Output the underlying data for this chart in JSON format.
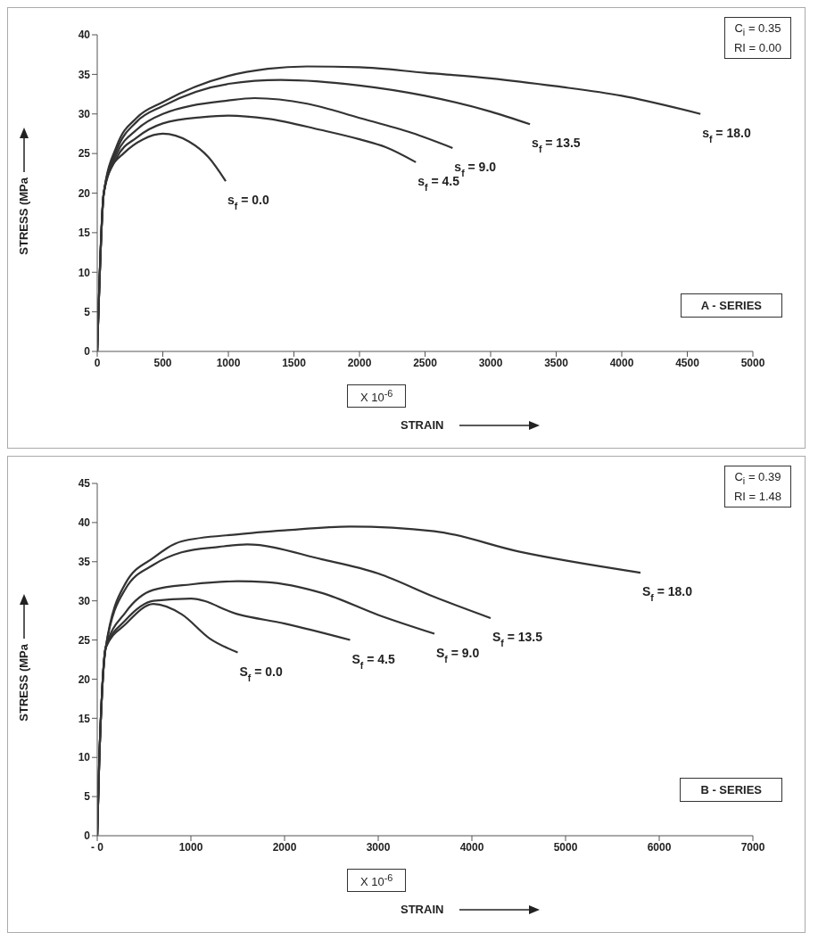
{
  "chart_data": [
    {
      "type": "line",
      "xlabel": "STRAIN",
      "ylabel": "STRESS (MPa",
      "xlim": [
        0,
        5000
      ],
      "xticks": [
        0,
        500,
        1000,
        1500,
        2000,
        2500,
        3000,
        3500,
        4000,
        4500,
        5000
      ],
      "ylim": [
        0,
        40
      ],
      "yticks": [
        0,
        5,
        10,
        15,
        20,
        25,
        30,
        35,
        40
      ],
      "marker": "none",
      "annotations": [
        "C$_{i}$ = 0.35",
        "RI = 0.00",
        "A - SERIES",
        "X 10$^{-6}$"
      ],
      "series": [
        {
          "name": "s$_{f}$ = 0.0",
          "color": "#333333",
          "x": [
            0,
            50,
            100,
            200,
            350,
            500,
            700,
            850,
            980
          ],
          "values": [
            0,
            20,
            23,
            25,
            26.8,
            27.5,
            26.5,
            24.5,
            21.5
          ]
        },
        {
          "name": "s$_{f}$ = 4.5",
          "color": "#333333",
          "x": [
            0,
            50,
            150,
            300,
            500,
            800,
            1000,
            1300,
            1700,
            2000,
            2200,
            2430
          ],
          "values": [
            0,
            20,
            24.5,
            27,
            28.8,
            29.6,
            29.8,
            29.4,
            28,
            26.8,
            25.8,
            23.9
          ]
        },
        {
          "name": "s$_{f}$ = 9.0",
          "color": "#333333",
          "x": [
            0,
            50,
            150,
            300,
            500,
            1000,
            1200,
            1600,
            2000,
            2400,
            2710
          ],
          "values": [
            0,
            20,
            25,
            28,
            30,
            31.7,
            32,
            31.3,
            29.5,
            27.6,
            25.7
          ]
        },
        {
          "name": "s$_{f}$ = 13.5",
          "color": "#333333",
          "x": [
            0,
            50,
            150,
            300,
            500,
            1000,
            1400,
            2000,
            2500,
            3000,
            3300
          ],
          "values": [
            0,
            20,
            25.5,
            29,
            31,
            33.8,
            34.3,
            33.6,
            32.3,
            30.3,
            28.7
          ]
        },
        {
          "name": "s$_{f}$ = 18.0",
          "color": "#333333",
          "x": [
            0,
            50,
            150,
            300,
            500,
            1000,
            1300,
            1600,
            2000,
            2500,
            3000,
            3500,
            4000,
            4600
          ],
          "values": [
            0,
            20,
            26,
            29.5,
            31.5,
            34.8,
            35.7,
            36,
            35.9,
            35.2,
            34.5,
            33.5,
            32.3,
            30
          ]
        }
      ]
    },
    {
      "type": "line",
      "xlabel": "STRAIN",
      "ylabel": "STRESS (MPa",
      "xlim": [
        0,
        7000
      ],
      "xticks": [
        {
          "value": 0,
          "label": "- 0"
        },
        1000,
        2000,
        3000,
        4000,
        5000,
        6000,
        7000
      ],
      "ylim": [
        0,
        45
      ],
      "yticks": [
        0,
        5,
        10,
        15,
        20,
        25,
        30,
        35,
        40,
        45
      ],
      "marker": "none",
      "annotations": [
        "C$_{i}$ = 0.39",
        "RI = 1.48",
        "B - SERIES",
        "X 10$^{-6}$"
      ],
      "series": [
        {
          "name": "S$_{f}$ = 0.0",
          "color": "#333333",
          "x": [
            0,
            20,
            50,
            90,
            300,
            600,
            900,
            1200,
            1500
          ],
          "values": [
            0,
            9,
            18,
            24,
            27,
            29.6,
            28.3,
            25.2,
            23.4
          ]
        },
        {
          "name": "S$_{f}$ = 4.5",
          "color": "#333333",
          "x": [
            0,
            20,
            50,
            90,
            300,
            600,
            1000,
            1500,
            2000,
            2700
          ],
          "values": [
            0,
            9,
            18,
            24,
            27.5,
            30,
            30.3,
            28.3,
            27.1,
            25
          ]
        },
        {
          "name": "S$_{f}$ = 9.0",
          "color": "#333333",
          "x": [
            0,
            20,
            50,
            90,
            300,
            600,
            1000,
            1500,
            1800,
            2400,
            3000,
            3600
          ],
          "values": [
            0,
            9,
            18,
            24,
            28.5,
            31.4,
            32.1,
            32.5,
            32.4,
            31,
            28.2,
            25.8
          ]
        },
        {
          "name": "S$_{f}$ = 13.5",
          "color": "#333333",
          "x": [
            0,
            20,
            50,
            90,
            300,
            600,
            900,
            1300,
            1600,
            2400,
            3000,
            3600,
            4200
          ],
          "values": [
            0,
            9,
            18,
            24,
            31.5,
            34.6,
            36.2,
            36.9,
            37.2,
            35.3,
            33.5,
            30.5,
            27.8
          ]
        },
        {
          "name": "S$_{f}$ = 18.0",
          "color": "#333333",
          "x": [
            0,
            20,
            50,
            90,
            300,
            600,
            900,
            1500,
            2000,
            2700,
            3600,
            4500,
            5800
          ],
          "values": [
            0,
            9,
            18,
            24,
            32.2,
            35.5,
            37.6,
            38.5,
            39,
            39.5,
            38.9,
            36.3,
            33.6
          ]
        }
      ]
    }
  ]
}
